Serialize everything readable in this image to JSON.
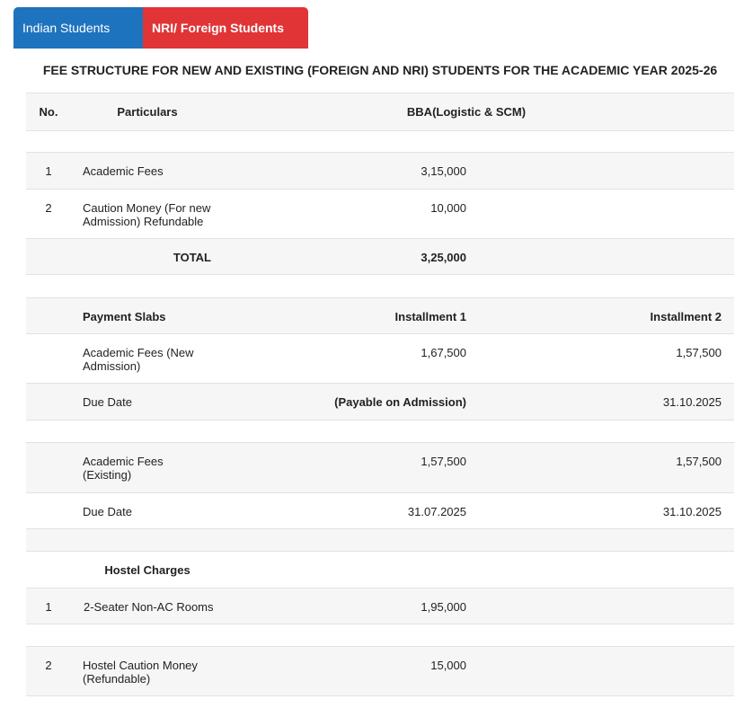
{
  "tabs": [
    "Indian Students",
    "NRI/ Foreign Students"
  ],
  "title": "FEE STRUCTURE FOR NEW AND EXISTING (FOREIGN AND NRI) STUDENTS FOR THE ACADEMIC YEAR 2025-26",
  "table": {
    "header": [
      "No.",
      "Particulars",
      "BBA(Logistic & SCM)"
    ],
    "rows": [
      [
        "1",
        "Academic Fees",
        "3,15,000"
      ],
      [
        "2",
        "Caution Money (For new Admission) Refundable",
        "10,000"
      ],
      [
        "TOTAL",
        "3,25,000"
      ],
      [
        "Payment Slabs",
        "Installment 1",
        "Installment 2"
      ],
      [
        "Academic Fees (New Admission)",
        "1,67,500",
        "1,57,500"
      ],
      [
        "Due Date",
        "(Payable on Admission)",
        "31.10.2025"
      ],
      [
        "Academic Fees (Existing)",
        "1,57,500",
        "1,57,500"
      ],
      [
        "Due Date",
        "31.07.2025",
        "31.10.2025"
      ],
      [
        "Hostel Charges"
      ],
      [
        "1",
        "2-Seater Non-AC Rooms",
        "1,95,000"
      ],
      [
        "2",
        "Hostel Caution Money (Refundable)",
        "15,000"
      ]
    ]
  }
}
